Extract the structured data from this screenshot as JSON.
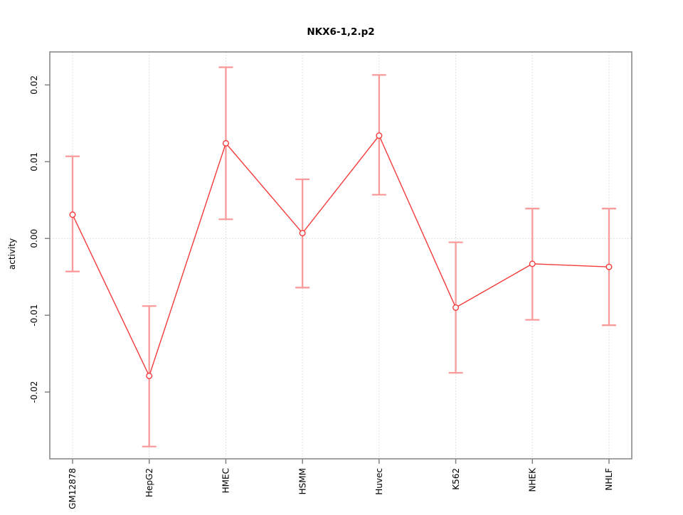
{
  "title": "NKX6-1,2.p2",
  "chart_data": {
    "type": "line",
    "title": "NKX6-1,2.p2",
    "xlabel": "",
    "ylabel": "activity",
    "categories": [
      "GM12878",
      "HepG2",
      "HMEC",
      "HSMM",
      "Huvec",
      "K562",
      "NHEK",
      "NHLF"
    ],
    "series": [
      {
        "name": "activity",
        "values": [
          0.0031,
          -0.0179,
          0.0124,
          0.0007,
          0.0134,
          -0.009,
          -0.0033,
          -0.0037
        ],
        "error_upper": [
          0.0107,
          -0.0088,
          0.0223,
          0.0077,
          0.0213,
          -0.0005,
          0.0039,
          0.0039
        ],
        "error_lower": [
          -0.0043,
          -0.0271,
          0.0025,
          -0.0064,
          0.0057,
          -0.0175,
          -0.0106,
          -0.0113
        ]
      }
    ],
    "yticks": [
      -0.02,
      -0.01,
      0,
      0.01,
      0.02
    ],
    "ylim": [
      -0.0287,
      0.0243
    ],
    "grid": {
      "vertical": "dotted line at each category",
      "horizontal": "dotted line at y = 0"
    },
    "legend": "none",
    "marker": "open-circle",
    "colors": {
      "line": "#f43b3b",
      "error_bar": "#f99b9b",
      "marker_stroke": "#f43b3b",
      "marker_fill": "#ffffff",
      "box": "#828282",
      "grid": "#d4d4d4",
      "text": "#000000",
      "background": "#ffffff"
    }
  }
}
